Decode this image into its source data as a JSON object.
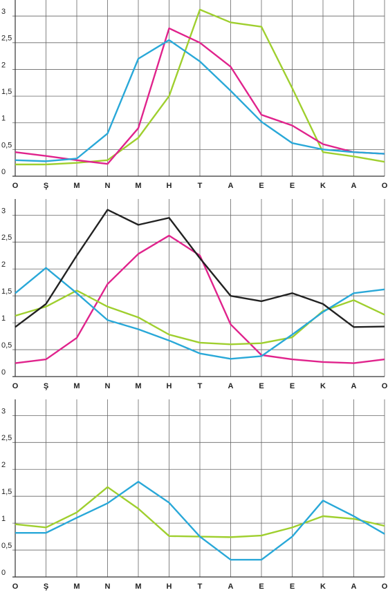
{
  "chart_data": [
    {
      "type": "line",
      "categories": [
        "O",
        "Ş",
        "M",
        "N",
        "M",
        "H",
        "T",
        "A",
        "E",
        "E",
        "K",
        "A",
        "O"
      ],
      "ylim": [
        0,
        3.3
      ],
      "yticks": [
        0,
        {
          "value": 0.5,
          "label": "0,5"
        },
        1,
        {
          "value": 1.5,
          "label": "1,5"
        },
        2,
        {
          "value": 2.5,
          "label": "2,5"
        },
        3
      ],
      "grid": true,
      "series": [
        {
          "color": "#9fcf2e",
          "values": [
            0.22,
            0.22,
            0.25,
            0.3,
            0.72,
            1.5,
            3.12,
            2.88,
            2.8,
            1.65,
            0.45,
            0.37,
            0.27
          ]
        },
        {
          "color": "#e0238c",
          "values": [
            0.45,
            0.38,
            0.3,
            0.23,
            0.9,
            2.77,
            2.5,
            2.05,
            1.15,
            0.95,
            0.6,
            0.45,
            0.42
          ]
        },
        {
          "color": "#29a8d8",
          "values": [
            0.3,
            0.28,
            0.33,
            0.8,
            2.2,
            2.55,
            2.15,
            1.6,
            1.02,
            0.62,
            0.5,
            0.45,
            0.42
          ]
        }
      ]
    },
    {
      "type": "line",
      "categories": [
        "O",
        "Ş",
        "M",
        "N",
        "M",
        "H",
        "T",
        "A",
        "E",
        "E",
        "K",
        "A",
        "O"
      ],
      "ylim": [
        0,
        3.3
      ],
      "yticks": [
        0,
        {
          "value": 0.5,
          "label": "0,5"
        },
        1,
        {
          "value": 1.5,
          "label": "1,5"
        },
        2,
        {
          "value": 2.5,
          "label": "2,5"
        },
        3
      ],
      "grid": true,
      "series": [
        {
          "color": "#e0238c",
          "values": [
            0.25,
            0.32,
            0.72,
            1.72,
            2.28,
            2.62,
            2.25,
            0.97,
            0.4,
            0.32,
            0.27,
            0.25,
            0.32
          ]
        },
        {
          "color": "#9fcf2e",
          "values": [
            1.13,
            1.3,
            1.6,
            1.3,
            1.1,
            0.78,
            0.63,
            0.6,
            0.62,
            0.73,
            1.22,
            1.42,
            1.15
          ]
        },
        {
          "color": "#29a8d8",
          "values": [
            1.55,
            2.02,
            1.55,
            1.05,
            0.88,
            0.67,
            0.43,
            0.33,
            0.38,
            0.78,
            1.2,
            1.55,
            1.62
          ]
        },
        {
          "color": "#222222",
          "values": [
            0.92,
            1.35,
            2.25,
            3.1,
            2.82,
            2.95,
            2.2,
            1.5,
            1.4,
            1.55,
            1.35,
            0.92,
            0.93
          ]
        }
      ]
    },
    {
      "type": "line",
      "categories": [
        "O",
        "Ş",
        "M",
        "N",
        "M",
        "H",
        "T",
        "A",
        "E",
        "E",
        "K",
        "A",
        "O"
      ],
      "ylim": [
        0,
        3.3
      ],
      "yticks": [
        0,
        {
          "value": 0.5,
          "label": "0,5"
        },
        1,
        {
          "value": 1.5,
          "label": "1,5"
        },
        2,
        {
          "value": 2.5,
          "label": "2,5"
        },
        3
      ],
      "grid": true,
      "series": [
        {
          "color": "#9fcf2e",
          "values": [
            0.98,
            0.92,
            1.2,
            1.67,
            1.27,
            0.76,
            0.75,
            0.74,
            0.77,
            0.92,
            1.13,
            1.08,
            0.95
          ]
        },
        {
          "color": "#29a8d8",
          "values": [
            0.82,
            0.82,
            1.1,
            1.37,
            1.77,
            1.38,
            0.75,
            0.32,
            0.32,
            0.75,
            1.42,
            1.13,
            0.8
          ]
        }
      ]
    }
  ]
}
